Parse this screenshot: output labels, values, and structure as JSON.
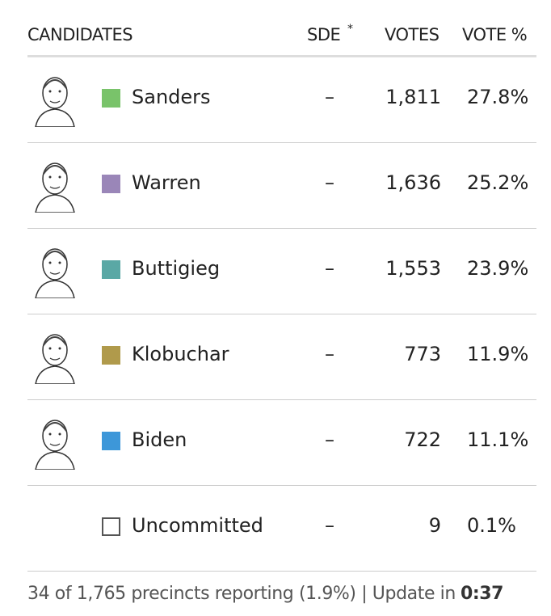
{
  "header": {
    "columns": [
      "CANDIDATES",
      "SDE",
      "*",
      "VOTES",
      "VOTE %"
    ]
  },
  "rows": [
    {
      "name": "Sanders",
      "color": "#79c36a",
      "portrait": true,
      "sde": "–",
      "votes": "1,811",
      "pct": "27.8%"
    },
    {
      "name": "Warren",
      "color": "#9a86b8",
      "portrait": true,
      "sde": "–",
      "votes": "1,636",
      "pct": "25.2%"
    },
    {
      "name": "Buttigieg",
      "color": "#5aa8a5",
      "portrait": true,
      "sde": "–",
      "votes": "1,553",
      "pct": "23.9%"
    },
    {
      "name": "Klobuchar",
      "color": "#b09a4b",
      "portrait": true,
      "sde": "–",
      "votes": "773",
      "pct": "11.9%"
    },
    {
      "name": "Biden",
      "color": "#3d97d9",
      "portrait": true,
      "sde": "–",
      "votes": "722",
      "pct": "11.1%"
    },
    {
      "name": "Uncommitted",
      "color": "#ffffff",
      "portrait": false,
      "sde": "–",
      "votes": "9",
      "pct": "0.1%"
    }
  ],
  "footer": {
    "status": "34 of 1,765 precincts reporting (1.9%) | Update in",
    "countdown": "0:37"
  }
}
